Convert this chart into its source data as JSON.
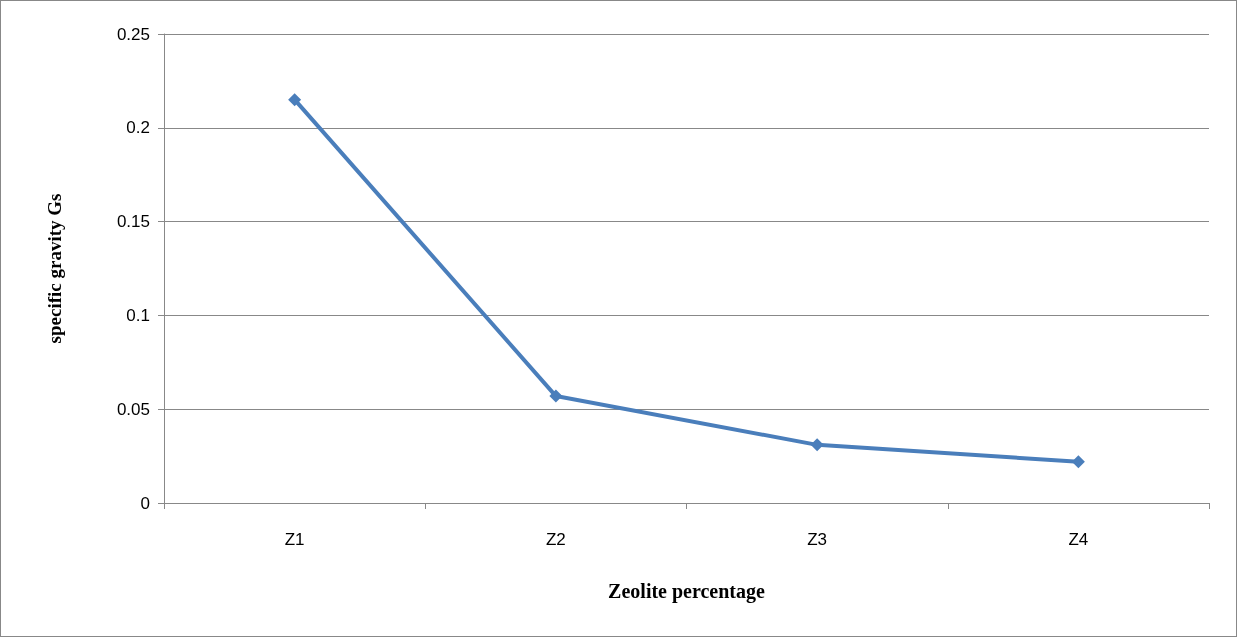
{
  "chart_data": {
    "type": "line",
    "xlabel": "Zeolite percentage",
    "ylabel": "specific gravity Gs",
    "categories": [
      "Z1",
      "Z2",
      "Z3",
      "Z4"
    ],
    "series": [
      {
        "color": "#4a7ebb",
        "values": [
          0.215,
          0.057,
          0.031,
          0.022
        ]
      }
    ],
    "ylim": [
      0,
      0.25
    ],
    "yticks": [
      0,
      0.05,
      0.1,
      0.15,
      0.2,
      0.25
    ],
    "grid": "y",
    "marker": "diamond",
    "line_style": "solid"
  }
}
